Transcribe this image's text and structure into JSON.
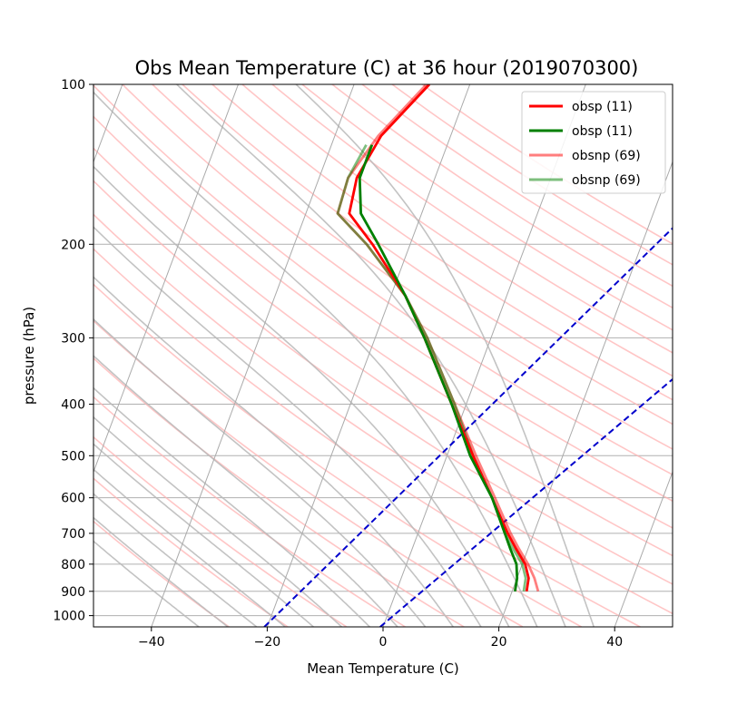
{
  "chart_data": {
    "type": "line",
    "title": "Obs Mean Temperature (C) at 36 hour (2019070300)",
    "xlabel": "Mean Temperature (C)",
    "ylabel": "pressure (hPa)",
    "xlim": [
      -50,
      50
    ],
    "ylim": [
      1050,
      100
    ],
    "y_scale": "log",
    "x_ticks": [
      -40,
      -20,
      0,
      20,
      40
    ],
    "x_tick_labels": [
      "−40",
      "−20",
      "0",
      "20",
      "40"
    ],
    "y_ticks": [
      1000,
      900,
      800,
      700,
      600,
      500,
      400,
      300,
      200,
      100
    ],
    "y_tick_labels": [
      "1000",
      "900",
      "800",
      "700",
      "600",
      "500",
      "400",
      "300",
      "200",
      "100"
    ],
    "grid": true,
    "legend_placement": "top-right",
    "colors": {
      "obsp_temp": "#ff0000",
      "obsp_dew": "#008000",
      "dry_adiabats": "#ffb3b3",
      "moist_adiabats": "#b8b8b8",
      "isotherms": "#aaaaaa",
      "mixing_ratio": "#0000cc"
    },
    "series": [
      {
        "name": "obsp (11)",
        "color": "#ff0000",
        "opacity": 1.0,
        "p": [
          900,
          850,
          800,
          750,
          700,
          600,
          500,
          400,
          300,
          250,
          200,
          175,
          150,
          125,
          100
        ],
        "t": [
          22.5,
          22,
          20.5,
          18,
          15.5,
          10.5,
          4.5,
          -2.5,
          -11.5,
          -17.5,
          -26.5,
          -32.5,
          -33.5,
          -32,
          -27
        ]
      },
      {
        "name": "obsp (11)",
        "color": "#008000",
        "opacity": 1.0,
        "p": [
          900,
          850,
          800,
          750,
          700,
          600,
          500,
          400,
          300,
          250,
          200,
          175,
          150,
          130
        ],
        "t": [
          20.5,
          20,
          19,
          17,
          15,
          10.5,
          4,
          -2.5,
          -11.5,
          -17.5,
          -25.5,
          -30.5,
          -33,
          -33
        ]
      },
      {
        "name": "obsnp (69)",
        "color": "#ff0000",
        "opacity": 0.5,
        "p": [
          900,
          850,
          800,
          750,
          700,
          600,
          500,
          400,
          300,
          250,
          200,
          175,
          150,
          125,
          100
        ],
        "t": [
          24.5,
          23,
          21,
          18.5,
          16,
          11,
          5,
          -2,
          -11,
          -17.5,
          -27.5,
          -34.5,
          -35,
          -32.5,
          -27.5
        ]
      },
      {
        "name": "obsnp (69)",
        "color": "#008000",
        "opacity": 0.5,
        "p": [
          900,
          850,
          800,
          750,
          700,
          600,
          500,
          400,
          300,
          250,
          200,
          175,
          150,
          130
        ],
        "t": [
          22,
          21.5,
          20,
          17.5,
          15,
          10.5,
          4.5,
          -2,
          -11,
          -17.5,
          -27.5,
          -34.5,
          -35,
          -34
        ]
      }
    ]
  }
}
